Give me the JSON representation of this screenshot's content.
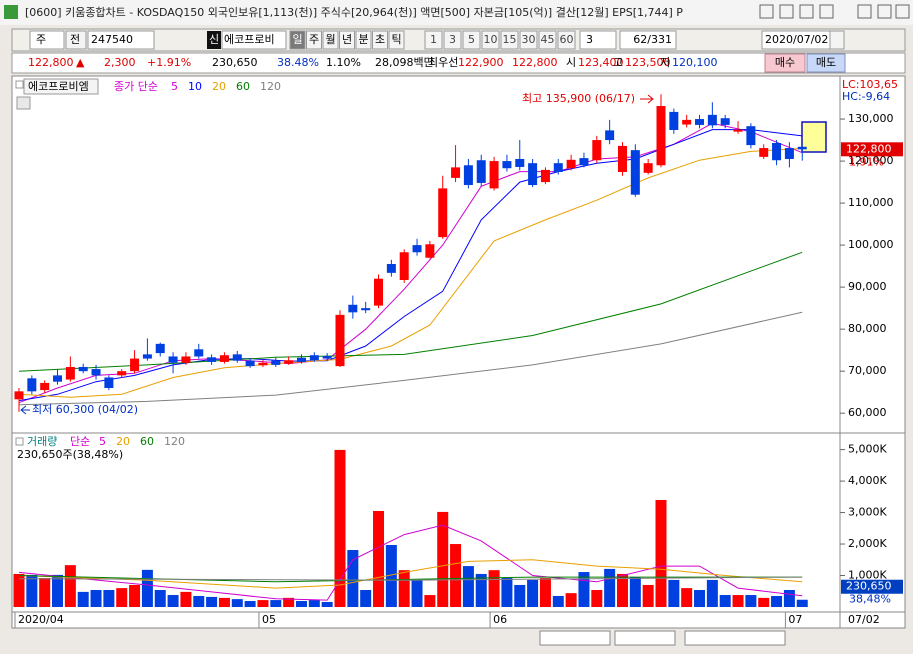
{
  "window": {
    "title": "[0600] 키움종합차트 - KOSDAQ150 외국인보유[1,113(천)] 주식수[20,964(천)] 액면[500] 자본금[105(억)] 결산[12월] EPS[1,744] P"
  },
  "toolbar": {
    "period_unit": "주",
    "mode": "전",
    "code": "247540",
    "badge": "신",
    "stock_name": "에코프로비",
    "periods": [
      "일",
      "주",
      "월",
      "년",
      "분",
      "초",
      "틱"
    ],
    "intervals": [
      "1",
      "3",
      "5",
      "10",
      "15",
      "30",
      "45",
      "60"
    ],
    "spin": "3",
    "count": "62/331",
    "date": "2020/07/02"
  },
  "quote": {
    "price": "122,800",
    "arrow": "▲",
    "change": "2,300",
    "change_pct": "+1.91%",
    "volume": "230,650",
    "turnover_pct": "38.48%",
    "ratio": "1.10%",
    "amount": "28,098백만",
    "best_label": "최우선",
    "ask": "122,900",
    "bid": "122,800",
    "open_label": "시",
    "open": "123,400",
    "high_label": "고",
    "high": "123,500",
    "low_label": "저",
    "low": "120,100",
    "buy": "매수",
    "sell": "매도"
  },
  "chart_data": [
    {
      "type": "candlestick",
      "name": "에코프로비엠",
      "ma_label": "종가 단순",
      "up_color": "#ff0000",
      "down_color": "#0040e0",
      "open": [
        63300,
        68300,
        65500,
        69000,
        68000,
        71000,
        70500,
        68500,
        69000,
        70000,
        74000,
        76500,
        73500,
        72000,
        75200,
        73300,
        72200,
        74000,
        72500,
        71400,
        72500,
        71800,
        73200,
        73800,
        73600,
        71200,
        85800,
        85000,
        85600,
        95500,
        91700,
        100000,
        97000,
        101900,
        116000,
        119000,
        120200,
        113500,
        120000,
        120500,
        119500,
        115000,
        119500,
        118300,
        120700,
        120200,
        127300,
        117400,
        122600,
        117200,
        119000,
        131700,
        128700,
        130000,
        131000,
        130200,
        127000,
        128300,
        121000,
        124300,
        123100,
        123400
      ],
      "high": [
        66000,
        69000,
        67800,
        70500,
        73500,
        71800,
        71500,
        69000,
        70500,
        75000,
        77800,
        76800,
        74500,
        74500,
        76500,
        74000,
        74500,
        74800,
        73000,
        72800,
        73200,
        73500,
        74000,
        74500,
        74300,
        84500,
        88000,
        86500,
        93000,
        96500,
        99000,
        101500,
        101000,
        116500,
        123800,
        120500,
        121500,
        121000,
        121500,
        125000,
        120500,
        118500,
        120500,
        121500,
        122000,
        126000,
        129800,
        124500,
        124000,
        120500,
        135900,
        132500,
        131000,
        131000,
        134000,
        131000,
        129500,
        129000,
        124000,
        125000,
        124500,
        123500
      ],
      "low": [
        60300,
        64500,
        64800,
        66800,
        67500,
        69500,
        68000,
        65500,
        68500,
        69500,
        72500,
        73500,
        69500,
        71500,
        73000,
        71500,
        71800,
        72000,
        70800,
        71000,
        71000,
        71500,
        71800,
        72200,
        72500,
        71000,
        82500,
        83800,
        85000,
        92500,
        91000,
        97500,
        96800,
        101500,
        115000,
        113500,
        114000,
        113000,
        117500,
        117800,
        113800,
        114500,
        116800,
        117800,
        118500,
        119500,
        124000,
        116500,
        111500,
        116800,
        118500,
        126500,
        128000,
        127800,
        127800,
        127800,
        126500,
        123000,
        120500,
        119000,
        118500,
        120100
      ],
      "close": [
        65200,
        65200,
        67200,
        67500,
        71000,
        70000,
        69000,
        66000,
        70000,
        73000,
        73000,
        74300,
        72000,
        73500,
        73500,
        72200,
        73800,
        72500,
        71200,
        72000,
        71500,
        72600,
        72200,
        72600,
        73000,
        83400,
        84000,
        84500,
        92000,
        93400,
        98300,
        98300,
        100200,
        113500,
        118500,
        114300,
        114800,
        120000,
        118300,
        118600,
        114300,
        117900,
        117400,
        120300,
        119000,
        125000,
        125000,
        123600,
        112000,
        119500,
        133100,
        127400,
        129800,
        128600,
        128500,
        128600,
        127500,
        123800,
        123100,
        120200,
        120500,
        122800
      ],
      "series": [
        {
          "name": "5",
          "color": "#d000d0",
          "x": [
            0,
            3,
            6,
            9,
            12,
            15,
            18,
            21,
            24,
            27,
            30,
            33,
            36,
            39,
            42,
            45,
            48,
            51,
            54,
            57,
            61
          ],
          "values": [
            62500,
            66000,
            69000,
            69500,
            72500,
            73000,
            72500,
            71800,
            72700,
            80000,
            89500,
            100000,
            114000,
            117500,
            117500,
            120500,
            121000,
            124000,
            129000,
            127000,
            122000
          ]
        },
        {
          "name": "10",
          "color": "#0000ff",
          "x": [
            0,
            3,
            6,
            9,
            12,
            15,
            18,
            21,
            24,
            27,
            30,
            33,
            36,
            39,
            42,
            45,
            48,
            51,
            54,
            57,
            61
          ],
          "values": [
            63000,
            64500,
            67500,
            69000,
            71500,
            72800,
            73000,
            72400,
            72500,
            76000,
            83000,
            89000,
            106000,
            115000,
            117500,
            119500,
            120500,
            124000,
            127500,
            127500,
            126000
          ]
        },
        {
          "name": "20",
          "color": "#e8a000",
          "x": [
            0,
            4,
            8,
            12,
            16,
            20,
            25,
            29,
            32,
            37,
            41,
            45,
            49,
            53,
            57,
            61
          ],
          "values": [
            64500,
            63800,
            64500,
            68500,
            70800,
            71800,
            72800,
            76000,
            81000,
            101000,
            106000,
            110700,
            116000,
            120200,
            122300,
            123000
          ]
        },
        {
          "name": "60",
          "color": "#008000",
          "x": [
            0,
            10,
            20,
            30,
            40,
            50,
            61
          ],
          "values": [
            70000,
            71500,
            73300,
            74000,
            78500,
            86000,
            98300
          ]
        },
        {
          "name": "120",
          "color": "#808080",
          "x": [
            0,
            10,
            20,
            30,
            40,
            50,
            61
          ],
          "values": [
            62000,
            62800,
            64300,
            67800,
            71500,
            76500,
            84000
          ]
        }
      ],
      "ylim": [
        56000,
        136200
      ],
      "yticks": [
        {
          "value": 60000,
          "label": "60,000"
        },
        {
          "value": 70000,
          "label": "70,000"
        },
        {
          "value": 80000,
          "label": "80,000"
        },
        {
          "value": 90000,
          "label": "90,000"
        },
        {
          "value": 100000,
          "label": "100,000"
        },
        {
          "value": 110000,
          "label": "110,000"
        },
        {
          "value": 120000,
          "label": "120,000"
        },
        {
          "value": 130000,
          "label": "130,000"
        }
      ],
      "xticks": [
        {
          "value": 0,
          "label": "2020/04"
        },
        {
          "value": 19,
          "label": "05"
        },
        {
          "value": 37,
          "label": "06"
        },
        {
          "value": 60,
          "label": "07"
        }
      ],
      "annotations": [
        "최고 135,900 (06/17)",
        "최저 60,300 (04/02)"
      ],
      "lc_label": "LC:103,65",
      "hc_label": "HC:-9,64",
      "last_label": "122,800",
      "last_change": "1,91%"
    },
    {
      "type": "bar",
      "name": "거래량",
      "ma_label": "단순",
      "values": [
        1050,
        1020,
        920,
        1020,
        1330,
        480,
        540,
        540,
        600,
        700,
        1180,
        540,
        380,
        480,
        350,
        320,
        290,
        250,
        190,
        220,
        220,
        290,
        190,
        220,
        160,
        4990,
        1810,
        540,
        3050,
        1970,
        1170,
        860,
        380,
        3020,
        2000,
        1300,
        1050,
        1170,
        920,
        700,
        860,
        920,
        350,
        440,
        1110,
        540,
        1210,
        1050,
        950,
        700,
        3400,
        860,
        600,
        540,
        860,
        380,
        380,
        380,
        290,
        350,
        540,
        230.65
      ],
      "series": [
        {
          "name": "5",
          "color": "#d000d0",
          "x": [
            0,
            5,
            10,
            15,
            20,
            24,
            26,
            30,
            33,
            36,
            40,
            45,
            50,
            53,
            56,
            61
          ],
          "values": [
            1100,
            900,
            700,
            480,
            260,
            220,
            1500,
            2300,
            2600,
            2100,
            1000,
            800,
            1300,
            1300,
            600,
            360
          ]
        },
        {
          "name": "20",
          "color": "#e8a000",
          "x": [
            0,
            10,
            20,
            25,
            30,
            35,
            40,
            45,
            50,
            55,
            61
          ],
          "values": [
            1000,
            850,
            600,
            700,
            1100,
            1450,
            1500,
            1300,
            1200,
            1000,
            800
          ]
        },
        {
          "name": "60",
          "color": "#008000",
          "x": [
            0,
            20,
            40,
            61
          ],
          "values": [
            1000,
            800,
            950,
            950
          ]
        },
        {
          "name": "120",
          "color": "#808080",
          "x": [
            0,
            30,
            61
          ],
          "values": [
            900,
            850,
            950
          ]
        }
      ],
      "ylim": [
        0,
        5400
      ],
      "yticks": [
        {
          "value": 1000,
          "label": "1,000K"
        },
        {
          "value": 2000,
          "label": "2,000K"
        },
        {
          "value": 3000,
          "label": "3,000K"
        },
        {
          "value": 4000,
          "label": "4,000K"
        },
        {
          "value": 5000,
          "label": "5,000K"
        }
      ],
      "summary": "230,650주(38,48%)",
      "last_label": "230,650",
      "last_pct": "38,48%",
      "date_label": "07/02"
    }
  ]
}
